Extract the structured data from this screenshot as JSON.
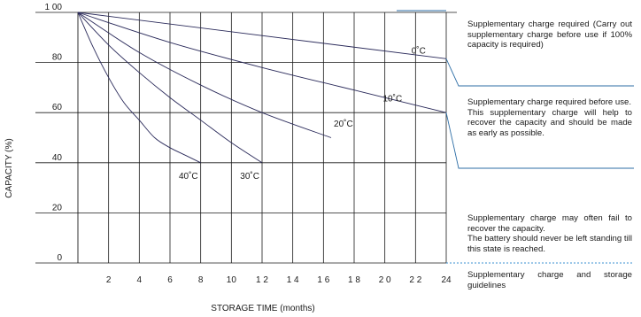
{
  "chart_data": {
    "type": "line",
    "xlabel": "STORAGE TIME (months)",
    "ylabel": "CAPACITY (%)",
    "xlim": [
      0,
      24
    ],
    "ylim": [
      0,
      100
    ],
    "x_ticks": [
      {
        "value": 2,
        "label": "2"
      },
      {
        "value": 4,
        "label": "4"
      },
      {
        "value": 6,
        "label": "6"
      },
      {
        "value": 8,
        "label": "8"
      },
      {
        "value": 10,
        "label": "10"
      },
      {
        "value": 12,
        "label": "1 2"
      },
      {
        "value": 14,
        "label": "1 4"
      },
      {
        "value": 16,
        "label": "1 6"
      },
      {
        "value": 18,
        "label": "1 8"
      },
      {
        "value": 20,
        "label": "2 0"
      },
      {
        "value": 22,
        "label": "2 2"
      },
      {
        "value": 24,
        "label": "24"
      }
    ],
    "y_ticks": [
      {
        "value": 0,
        "label": "0"
      },
      {
        "value": 20,
        "label": "20"
      },
      {
        "value": 40,
        "label": "40"
      },
      {
        "value": 60,
        "label": "60"
      },
      {
        "value": 80,
        "label": "80"
      },
      {
        "value": 100,
        "label": "1 00"
      }
    ],
    "grid": true,
    "series": [
      {
        "name": "0˚C",
        "x": [
          0,
          24
        ],
        "y": [
          100,
          81.5
        ]
      },
      {
        "name": "10˚C",
        "x": [
          0,
          6,
          12,
          18,
          24
        ],
        "y": [
          100,
          88,
          78,
          69,
          60
        ]
      },
      {
        "name": "20˚C",
        "x": [
          0,
          4,
          8,
          12,
          16.5
        ],
        "y": [
          100,
          84,
          71,
          60,
          50
        ]
      },
      {
        "name": "30˚C",
        "x": [
          0,
          2,
          4,
          6,
          8,
          10,
          12
        ],
        "y": [
          100,
          87,
          76,
          66,
          57,
          48,
          40
        ]
      },
      {
        "name": "40˚C",
        "x": [
          0,
          1,
          2,
          3,
          4,
          5,
          6,
          7,
          8
        ],
        "y": [
          100,
          86,
          74,
          64,
          57,
          50,
          46,
          43,
          40
        ]
      }
    ]
  },
  "guidelines": {
    "zone1": "Supplementary charge required (Carry out supplementary charge before use if 100% capacity is required)",
    "zone2_line1": "Supplementary charge required before use.",
    "zone2_line2": "This supplementary charge will help to recover the capacity and should be made as early as possible.",
    "zone3_line1": "Supplementary charge may often fail to recover the capacity.",
    "zone3_line2": "The battery should never be left standing till this state is reached.",
    "footer": "Supplementary charge and storage guidelines"
  },
  "colors": {
    "curve": "#2a2a5a",
    "grid": "#1a1a1a",
    "guide_line": "#2e6ea6",
    "guide_dotted": "#3a8fd0"
  }
}
